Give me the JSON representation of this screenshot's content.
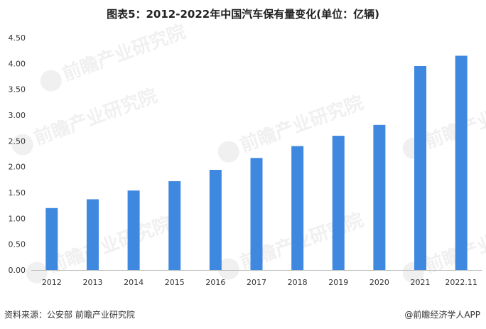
{
  "header": {
    "title": "图表5：2012-2022年中国汽车保有量变化(单位：亿辆)"
  },
  "footer": {
    "source": "资料来源：公安部 前瞻产业研究院",
    "app": "@前瞻经济学人APP"
  },
  "watermark": {
    "text": "前瞻产业研究院"
  },
  "colors": {
    "bar": "#3f88e0",
    "axis": "#bfbfbf",
    "tick_text": "#333333"
  },
  "chart_data": {
    "type": "bar",
    "title": "图表5：2012-2022年中国汽车保有量变化(单位：亿辆)",
    "categories": [
      "2012",
      "2013",
      "2014",
      "2015",
      "2016",
      "2017",
      "2018",
      "2019",
      "2020",
      "2021",
      "2022.11"
    ],
    "values": [
      1.2,
      1.37,
      1.54,
      1.72,
      1.94,
      2.17,
      2.4,
      2.6,
      2.81,
      3.95,
      4.15
    ],
    "yticks": [
      "0.00",
      "0.50",
      "1.00",
      "1.50",
      "2.00",
      "2.50",
      "3.00",
      "3.50",
      "4.00",
      "4.50"
    ],
    "ylim": [
      0,
      4.5
    ],
    "xlabel": "",
    "ylabel": "",
    "grid": false,
    "legend": "none"
  }
}
